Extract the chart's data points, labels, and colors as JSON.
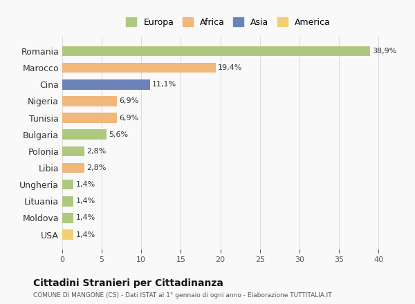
{
  "countries": [
    "Romania",
    "Marocco",
    "Cina",
    "Nigeria",
    "Tunisia",
    "Bulgaria",
    "Polonia",
    "Libia",
    "Ungheria",
    "Lituania",
    "Moldova",
    "USA"
  ],
  "values": [
    38.9,
    19.4,
    11.1,
    6.9,
    6.9,
    5.6,
    2.8,
    2.8,
    1.4,
    1.4,
    1.4,
    1.4
  ],
  "labels": [
    "38,9%",
    "19,4%",
    "11,1%",
    "6,9%",
    "6,9%",
    "5,6%",
    "2,8%",
    "2,8%",
    "1,4%",
    "1,4%",
    "1,4%",
    "1,4%"
  ],
  "colors": [
    "#aec97f",
    "#f0b87a",
    "#6b82b8",
    "#f0b87a",
    "#f0b87a",
    "#aec97f",
    "#aec97f",
    "#f0b87a",
    "#aec97f",
    "#aec97f",
    "#aec97f",
    "#f0d070"
  ],
  "continents": [
    "Europa",
    "Africa",
    "Asia",
    "Africa",
    "Africa",
    "Europa",
    "Europa",
    "Africa",
    "Europa",
    "Europa",
    "Europa",
    "America"
  ],
  "legend_labels": [
    "Europa",
    "Africa",
    "Asia",
    "America"
  ],
  "legend_colors": [
    "#aec97f",
    "#f0b87a",
    "#6b82b8",
    "#f0d070"
  ],
  "title": "Cittadini Stranieri per Cittadinanza",
  "subtitle": "COMUNE DI MANGONE (CS) - Dati ISTAT al 1° gennaio di ogni anno - Elaborazione TUTTITALIA.IT",
  "xlabel": "",
  "xlim": [
    0,
    42
  ],
  "xticks": [
    0,
    5,
    10,
    15,
    20,
    25,
    30,
    35,
    40
  ],
  "background_color": "#f9f9f9",
  "grid_color": "#dddddd",
  "bar_height": 0.6
}
